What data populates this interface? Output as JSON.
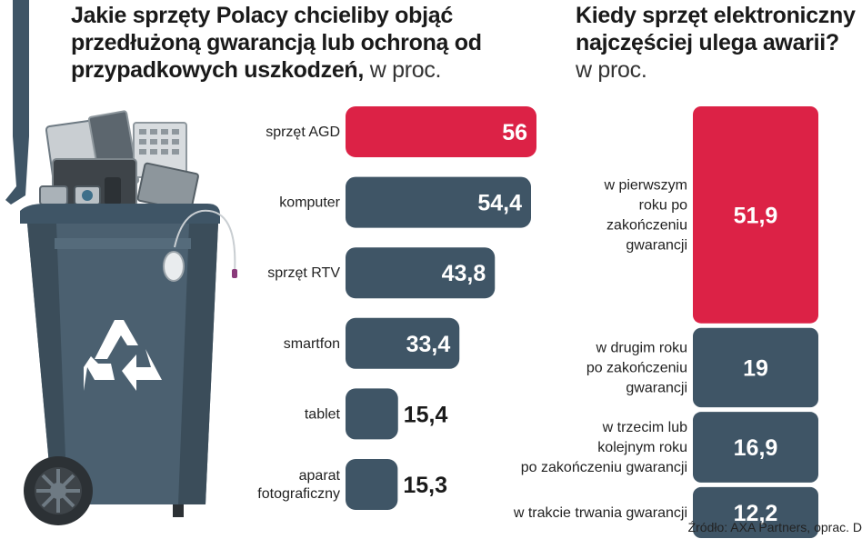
{
  "left_title": {
    "bold": "Jakie sprzęty Polacy chcieliby objąć przedłużoną gwarancją lub ochroną od przypadkowych uszkodzeń,",
    "unit": "w proc."
  },
  "right_title": {
    "bold_line1": "Kiedy sprzęt elektroniczny",
    "bold_line2": "najczęściej ulega awarii?",
    "unit": "w proc."
  },
  "colors": {
    "highlight": "#dc2246",
    "bar": "#3f5566",
    "bin": "#4b6070"
  },
  "chart_data": [
    {
      "type": "bar",
      "orientation": "horizontal",
      "title": "Jakie sprzęty Polacy chcieliby objąć przedłużoną gwarancją lub ochroną od przypadkowych uszkodzeń, w proc.",
      "categories": [
        "sprzęt AGD",
        "komputer",
        "sprzęt RTV",
        "smartfon",
        "tablet",
        "aparat fotograficzny"
      ],
      "category_lines": [
        [
          "sprzęt AGD"
        ],
        [
          "komputer"
        ],
        [
          "sprzęt RTV"
        ],
        [
          "smartfon"
        ],
        [
          "tablet"
        ],
        [
          "aparat",
          "fotograficzny"
        ]
      ],
      "values": [
        56,
        54.4,
        43.8,
        33.4,
        15.4,
        15.3
      ],
      "value_labels": [
        "56",
        "54,4",
        "43,8",
        "33,4",
        "15,4",
        "15,3"
      ],
      "highlight_index": 0
    },
    {
      "type": "bar",
      "orientation": "vertical-stack",
      "title": "Kiedy sprzęt elektroniczny najczęściej ulega awarii? w proc.",
      "categories": [
        "w pierwszym roku po zakończeniu gwarancji",
        "w drugim roku po zakończeniu gwarancji",
        "w trzecim lub kolejnym roku po zakończeniu gwarancji",
        "w trakcie trwania gwarancji"
      ],
      "category_lines": [
        [
          "w pierwszym",
          "roku po",
          "zakończeniu",
          "gwarancji"
        ],
        [
          "w drugim roku",
          "po zakończeniu",
          "gwarancji"
        ],
        [
          "w trzecim lub",
          "kolejnym roku",
          "po zakończeniu gwarancji"
        ],
        [
          "w trakcie trwania gwarancji"
        ]
      ],
      "values": [
        51.9,
        19,
        16.9,
        12.2
      ],
      "value_labels": [
        "51,9",
        "19",
        "16,9",
        "12,2"
      ],
      "highlight_index": 0
    }
  ],
  "source": "Źródło: AXA Partners, oprac. D"
}
